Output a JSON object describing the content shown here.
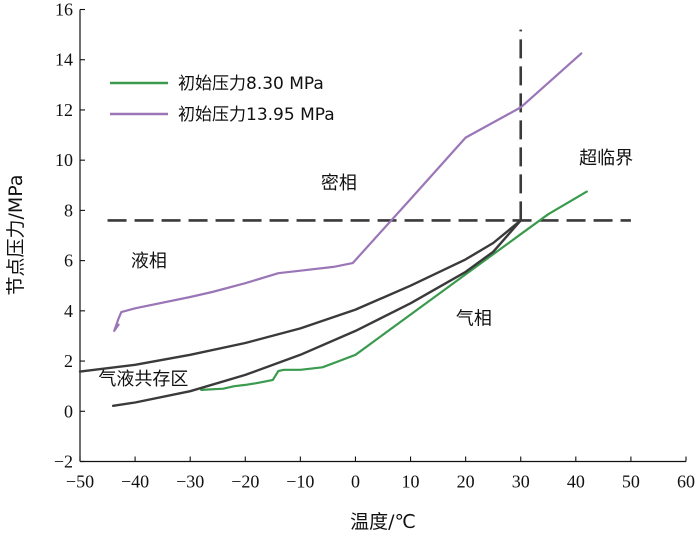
{
  "chart_data": {
    "type": "line",
    "xlabel": "温度/℃",
    "ylabel": "节点压力/MPa",
    "xlim": [
      -50,
      60
    ],
    "ylim": [
      -2,
      16
    ],
    "x_ticks": [
      -50,
      -40,
      -30,
      -20,
      -10,
      0,
      10,
      20,
      30,
      40,
      50,
      60
    ],
    "y_ticks": [
      -2,
      0,
      2,
      4,
      6,
      8,
      10,
      12,
      14,
      16
    ],
    "x_tick_labels": [
      "−50",
      "−40",
      "−30",
      "−20",
      "−10",
      "0",
      "10",
      "20",
      "30",
      "40",
      "50",
      "60"
    ],
    "y_tick_labels": [
      "−2",
      "0",
      "2",
      "4",
      "6",
      "8",
      "10",
      "12",
      "14",
      "16"
    ],
    "grid": false,
    "legend_position": "top-left",
    "legend": [
      {
        "label": "初始压力8.30 MPa",
        "color": "#3a9a4e"
      },
      {
        "label": "初始压力13.95 MPa",
        "color": "#9a76b6"
      }
    ],
    "series": [
      {
        "name": "初始压力8.30 MPa",
        "color": "#3a9a4e",
        "points": [
          [
            -28,
            0.85
          ],
          [
            -24,
            0.9
          ],
          [
            -22,
            1.0
          ],
          [
            -20,
            1.05
          ],
          [
            -18,
            1.12
          ],
          [
            -16,
            1.2
          ],
          [
            -15,
            1.25
          ],
          [
            -14,
            1.6
          ],
          [
            -13,
            1.65
          ],
          [
            -10,
            1.65
          ],
          [
            -6,
            1.75
          ],
          [
            -3,
            2.0
          ],
          [
            0,
            2.25
          ],
          [
            10,
            3.85
          ],
          [
            20,
            5.45
          ],
          [
            30,
            7.05
          ],
          [
            35,
            7.85
          ],
          [
            42,
            8.75
          ]
        ]
      },
      {
        "name": "初始压力13.95 MPa",
        "color": "#9a76b6",
        "points": [
          [
            -43.5,
            3.3
          ],
          [
            -43,
            3.45
          ],
          [
            -43.8,
            3.2
          ],
          [
            -43,
            3.7
          ],
          [
            -42.5,
            3.95
          ],
          [
            -40,
            4.1
          ],
          [
            -30,
            4.55
          ],
          [
            -26,
            4.75
          ],
          [
            -20,
            5.1
          ],
          [
            -14,
            5.5
          ],
          [
            -10,
            5.6
          ],
          [
            -4,
            5.75
          ],
          [
            -0.5,
            5.9
          ],
          [
            10,
            8.45
          ],
          [
            20,
            10.9
          ],
          [
            30,
            12.1
          ],
          [
            41,
            14.25
          ]
        ]
      },
      {
        "name": "upper phase boundary",
        "color": "#3a3a3a",
        "points": [
          [
            -50,
            1.58
          ],
          [
            -40,
            1.85
          ],
          [
            -30,
            2.25
          ],
          [
            -20,
            2.72
          ],
          [
            -10,
            3.3
          ],
          [
            0,
            4.05
          ],
          [
            10,
            5.0
          ],
          [
            20,
            6.05
          ],
          [
            25,
            6.7
          ],
          [
            30,
            7.6
          ]
        ]
      },
      {
        "name": "lower phase boundary",
        "color": "#3a3a3a",
        "points": [
          [
            -44,
            0.22
          ],
          [
            -40,
            0.35
          ],
          [
            -30,
            0.8
          ],
          [
            -20,
            1.45
          ],
          [
            -10,
            2.25
          ],
          [
            0,
            3.2
          ],
          [
            10,
            4.3
          ],
          [
            20,
            5.55
          ],
          [
            25,
            6.35
          ],
          [
            30,
            7.6
          ]
        ]
      }
    ],
    "reference_lines": [
      {
        "orientation": "horizontal",
        "value": 7.6,
        "from": -45,
        "to": 50
      },
      {
        "orientation": "vertical",
        "value": 30,
        "from": 7.6,
        "to": 15.2
      }
    ],
    "annotations": [
      {
        "text": "密相",
        "x": -3,
        "y": 8.85
      },
      {
        "text": "超临界",
        "x": 45.5,
        "y": 9.85
      },
      {
        "text": "液相",
        "x": -37.5,
        "y": 5.75
      },
      {
        "text": "气相",
        "x": 21.5,
        "y": 3.45
      },
      {
        "text": "气液共存区",
        "x": -38.5,
        "y": 1.05
      }
    ]
  }
}
